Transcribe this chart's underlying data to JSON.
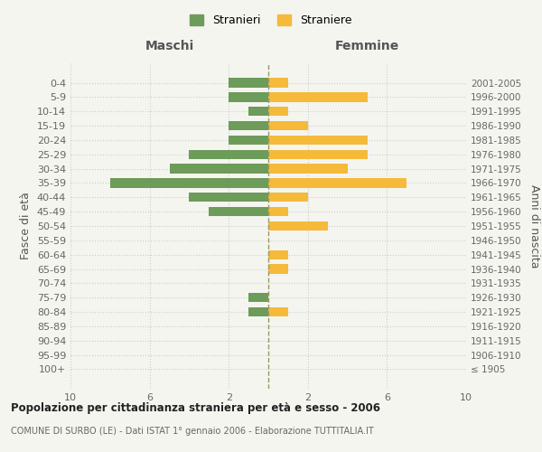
{
  "age_groups": [
    "100+",
    "95-99",
    "90-94",
    "85-89",
    "80-84",
    "75-79",
    "70-74",
    "65-69",
    "60-64",
    "55-59",
    "50-54",
    "45-49",
    "40-44",
    "35-39",
    "30-34",
    "25-29",
    "20-24",
    "15-19",
    "10-14",
    "5-9",
    "0-4"
  ],
  "birth_years": [
    "≤ 1905",
    "1906-1910",
    "1911-1915",
    "1916-1920",
    "1921-1925",
    "1926-1930",
    "1931-1935",
    "1936-1940",
    "1941-1945",
    "1946-1950",
    "1951-1955",
    "1956-1960",
    "1961-1965",
    "1966-1970",
    "1971-1975",
    "1976-1980",
    "1981-1985",
    "1986-1990",
    "1991-1995",
    "1996-2000",
    "2001-2005"
  ],
  "maschi": [
    0,
    0,
    0,
    0,
    1,
    1,
    0,
    0,
    0,
    0,
    0,
    3,
    4,
    8,
    5,
    4,
    2,
    2,
    1,
    2,
    2
  ],
  "femmine": [
    0,
    0,
    0,
    0,
    1,
    0,
    0,
    1,
    1,
    0,
    3,
    1,
    2,
    7,
    4,
    5,
    5,
    2,
    1,
    5,
    1
  ],
  "color_maschi": "#6d9b5a",
  "color_femmine": "#f5ba3a",
  "title": "Popolazione per cittadinanza straniera per età e sesso - 2006",
  "subtitle": "COMUNE DI SURBO (LE) - Dati ISTAT 1° gennaio 2006 - Elaborazione TUTTITALIA.IT",
  "ylabel_left": "Fasce di età",
  "ylabel_right": "Anni di nascita",
  "label_maschi": "Maschi",
  "label_femmine": "Femmine",
  "legend_maschi": "Stranieri",
  "legend_femmine": "Straniere",
  "xlim": 10,
  "bg_color": "#f5f5f0",
  "grid_color": "#cccccc",
  "centerline_color": "#999966"
}
